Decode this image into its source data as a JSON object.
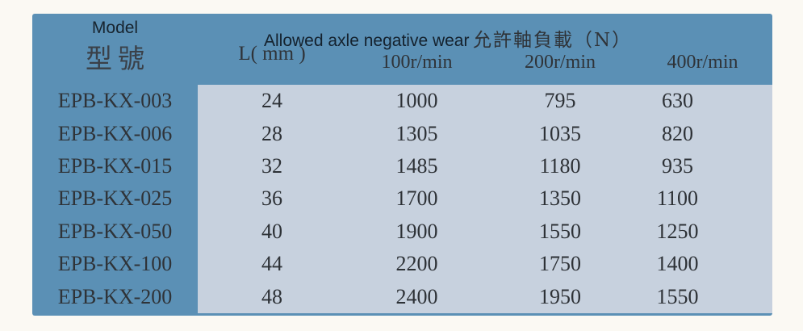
{
  "table": {
    "header": {
      "model_en": "Model",
      "model_zh": "型號",
      "l_label": "L( mm )",
      "span_title_en": "Allowed axle negative wear",
      "span_title_zh": "允許軸負載（N）",
      "rpm_100": "100r/min",
      "rpm_200": "200r/min",
      "rpm_400": "400r/min"
    },
    "rows": [
      {
        "model": "EPB-KX-003",
        "l": "24",
        "r100": "1000",
        "r200": "795",
        "r400": "630"
      },
      {
        "model": "EPB-KX-006",
        "l": "28",
        "r100": "1305",
        "r200": "1035",
        "r400": "820"
      },
      {
        "model": "EPB-KX-015",
        "l": "32",
        "r100": "1485",
        "r200": "1180",
        "r400": "935"
      },
      {
        "model": "EPB-KX-025",
        "l": "36",
        "r100": "1700",
        "r200": "1350",
        "r400": "1100"
      },
      {
        "model": "EPB-KX-050",
        "l": "40",
        "r100": "1900",
        "r200": "1550",
        "r400": "1250"
      },
      {
        "model": "EPB-KX-100",
        "l": "44",
        "r100": "2200",
        "r200": "1750",
        "r400": "1400"
      },
      {
        "model": "EPB-KX-200",
        "l": "48",
        "r100": "2400",
        "r200": "1950",
        "r400": "1550"
      }
    ]
  },
  "colors": {
    "table_blue": "#5b90b5",
    "panel_light": "#c7d1de",
    "page_background": "#fbf9f3",
    "header_text": "#17242f",
    "body_text": "#2f3338"
  }
}
